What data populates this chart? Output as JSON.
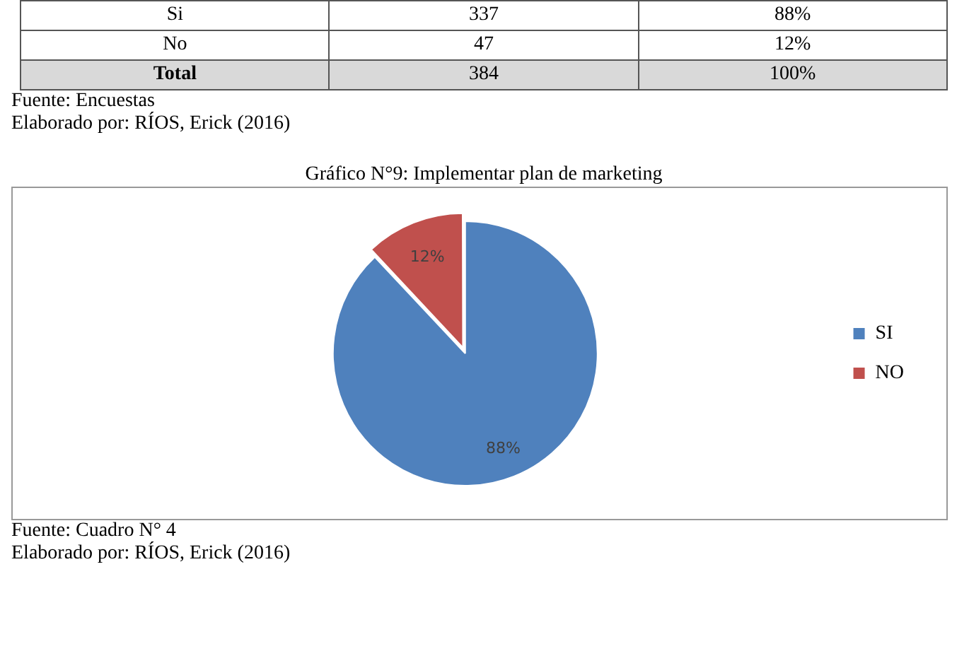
{
  "chart_data": {
    "type": "pie",
    "title": "Gráfico N°9: Implementar plan de marketing",
    "categories": [
      "SI",
      "NO"
    ],
    "values": [
      88,
      12
    ],
    "colors": [
      "#4f81bd",
      "#c0504d"
    ],
    "value_labels": [
      "88%",
      "12%"
    ],
    "legend": "right",
    "annotations": [
      "Si\t337\t88%",
      "No\t47\t12%",
      "Total\t384\t100%",
      "Fuente: Encuestas",
      "Elaborado por: RÍOS, Erick (2016)",
      "Fuente: Cuadro N° 4",
      "Elaborado por: RÍOS, Erick (2016)"
    ]
  }
}
